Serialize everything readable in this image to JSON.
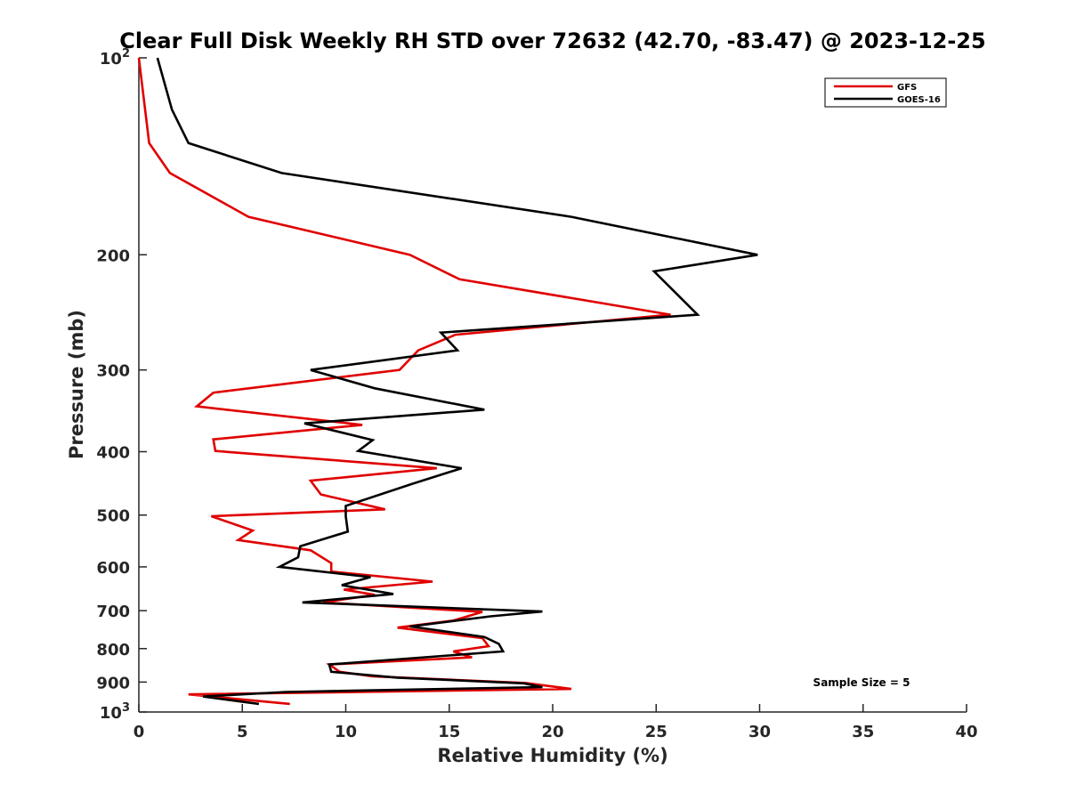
{
  "chart_data": {
    "type": "line",
    "title": "Clear Full Disk Weekly RH STD over 72632 (42.70, -83.47) @ 2023-12-25",
    "xlabel": "Relative Humidity (%)",
    "ylabel": "Pressure (mb)",
    "xlim": [
      0,
      40
    ],
    "ylim": [
      100,
      1000
    ],
    "y_scale": "log",
    "y_reversed": true,
    "grid": false,
    "legend_position": "top-right",
    "x_ticks": [
      "0",
      "5",
      "10",
      "15",
      "20",
      "25",
      "30",
      "35",
      "40"
    ],
    "y_ticks": [
      {
        "value": 100,
        "base": "10",
        "exp": "2"
      },
      {
        "value": 200,
        "label": "200"
      },
      {
        "value": 300,
        "label": "300"
      },
      {
        "value": 400,
        "label": "400"
      },
      {
        "value": 500,
        "label": "500"
      },
      {
        "value": 600,
        "label": "600"
      },
      {
        "value": 700,
        "label": "700"
      },
      {
        "value": 800,
        "label": "800"
      },
      {
        "value": 900,
        "label": "900"
      },
      {
        "value": 1000,
        "base": "10",
        "exp": "3"
      }
    ],
    "annotation": "Sample Size = 5",
    "series": [
      {
        "name": "GFS",
        "color": "#e00000",
        "points": [
          [
            0.0,
            100
          ],
          [
            0.5,
            135
          ],
          [
            1.5,
            150
          ],
          [
            5.3,
            175
          ],
          [
            13.1,
            200
          ],
          [
            15.5,
            218
          ],
          [
            25.7,
            247
          ],
          [
            15.3,
            265
          ],
          [
            13.5,
            280
          ],
          [
            12.6,
            300
          ],
          [
            3.6,
            325
          ],
          [
            2.8,
            341
          ],
          [
            10.8,
            364
          ],
          [
            3.6,
            383
          ],
          [
            3.7,
            399
          ],
          [
            14.4,
            424
          ],
          [
            8.3,
            443
          ],
          [
            8.8,
            465
          ],
          [
            11.9,
            490
          ],
          [
            3.5,
            502
          ],
          [
            5.5,
            528
          ],
          [
            4.8,
            546
          ],
          [
            8.3,
            566
          ],
          [
            9.3,
            592
          ],
          [
            9.3,
            610
          ],
          [
            14.2,
            632
          ],
          [
            9.9,
            650
          ],
          [
            11.4,
            662
          ],
          [
            8.9,
            680
          ],
          [
            16.6,
            703
          ],
          [
            15.2,
            725
          ],
          [
            12.5,
            743
          ],
          [
            16.6,
            771
          ],
          [
            16.9,
            793
          ],
          [
            15.2,
            808
          ],
          [
            16.1,
            825
          ],
          [
            9.2,
            846
          ],
          [
            9.7,
            868
          ],
          [
            11.3,
            882
          ],
          [
            18.7,
            903
          ],
          [
            20.9,
            922
          ],
          [
            2.4,
            940
          ],
          [
            7.3,
            972
          ]
        ]
      },
      {
        "name": "GOES-16",
        "color": "#000000",
        "points": [
          [
            0.9,
            100
          ],
          [
            1.6,
            120
          ],
          [
            2.4,
            135
          ],
          [
            6.9,
            150
          ],
          [
            20.9,
            175
          ],
          [
            29.9,
            200
          ],
          [
            24.9,
            212
          ],
          [
            27.0,
            247
          ],
          [
            14.6,
            263
          ],
          [
            15.4,
            280
          ],
          [
            8.3,
            300
          ],
          [
            11.4,
            320
          ],
          [
            16.7,
            345
          ],
          [
            8.0,
            362
          ],
          [
            11.3,
            384
          ],
          [
            10.6,
            399
          ],
          [
            15.6,
            424
          ],
          [
            13.2,
            448
          ],
          [
            10.0,
            484
          ],
          [
            10.0,
            502
          ],
          [
            10.1,
            530
          ],
          [
            7.8,
            558
          ],
          [
            7.7,
            580
          ],
          [
            6.8,
            600
          ],
          [
            11.2,
            622
          ],
          [
            9.8,
            640
          ],
          [
            12.3,
            660
          ],
          [
            7.9,
            680
          ],
          [
            19.5,
            702
          ],
          [
            17.0,
            714
          ],
          [
            13.1,
            740
          ],
          [
            16.7,
            768
          ],
          [
            17.4,
            787
          ],
          [
            17.6,
            808
          ],
          [
            9.2,
            846
          ],
          [
            9.3,
            868
          ],
          [
            12.5,
            886
          ],
          [
            18.6,
            904
          ],
          [
            19.5,
            916
          ],
          [
            7.1,
            932
          ],
          [
            3.1,
            947
          ],
          [
            5.8,
            972
          ]
        ]
      }
    ]
  }
}
